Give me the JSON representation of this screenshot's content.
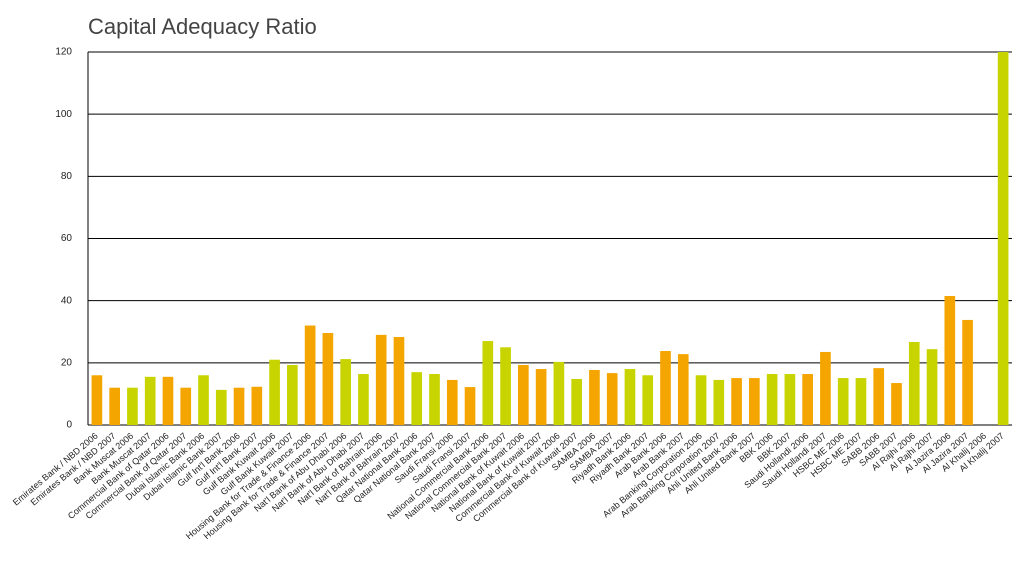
{
  "chart_data": {
    "type": "bar",
    "title": "Capital Adequacy Ratio",
    "categories": [
      "Emirates Bank / NBD 2006",
      "Emirates Bank / NBD 2007",
      "Bank Muscat 2006",
      "Bank Muscat 2007",
      "Commercial Bank of Qatar 2006",
      "Commercial Bank of Qatar 2007",
      "Dubai Islamic Bank 2006",
      "Dubai Islamic Bank 2007",
      "Gulf Int'l Bank 2006",
      "Gulf Int'l Bank 2007",
      "Gulf Bank Kuwait 2006",
      "Gulf Bank Kuwait 2007",
      "Housing Bank for Trade & Finance 2006",
      "Housing Bank for Trade & Finance 2007",
      "Nat'l Bank of Abu Dhabi 2006",
      "Nat'l Bank of Abu Dhabi 2007",
      "Nat'l Bank of Bahrain 2006",
      "Nat'l Bank of Bahrain 2007",
      "Qatar National Bank 2006",
      "Qatar National Bank 2007",
      "Saudi Fransi 2006",
      "Saudi Fransi 2007",
      "National Commercial Bank 2006",
      "National Commercial Bank 2007",
      "National Bank of Kuwait 2006",
      "National Bank of Kuwait 2007",
      "Commercial Bank of Kuwait 2006",
      "Commercial Bank of Kuwait 2007",
      "SAMBA 2006",
      "SAMBA 2007",
      "Riyadh Bank 2006",
      "Riyadh Bank 2007",
      "Arab Bank 2006",
      "Arab Bank 2007",
      "Arab Banking Corporation 2006",
      "Arab Banking Corporation 2007",
      "Ahli United Bank 2006",
      "Ahli United Bank 2007",
      "BBK 2006",
      "BBK 2007",
      "Saudi Hollandi 2006",
      "Saudi Hollandi 2007",
      "HSBC ME 2006",
      "HSBC ME 2007",
      "SABB 2006",
      "SABB 2007",
      "Al Rajhi 2006",
      "Al Rajhi 2007",
      "Al Jazira 2006",
      "Al Jazira 2007",
      "Al Khalij 2006",
      "Al Khalij 2007"
    ],
    "values": [
      16,
      12,
      12,
      15.5,
      15.5,
      12,
      16,
      11.3,
      12,
      12.3,
      21,
      19.3,
      32,
      29.6,
      21.2,
      16.4,
      29,
      28.3,
      17,
      16.4,
      14.5,
      12.2,
      27,
      25,
      19.3,
      18,
      20.3,
      14.8,
      17.7,
      16.7,
      18,
      16,
      23.8,
      22.8,
      16,
      14.5,
      15.1,
      15.1,
      16.4,
      16.4,
      16.4,
      23.5,
      15.1,
      15.1,
      18.3,
      13.5,
      26.7,
      24.4,
      41.5,
      33.8,
      null,
      120
    ],
    "colors": [
      "#f5a500",
      "#c8d400"
    ],
    "ylim": [
      0,
      120
    ],
    "yticks": [
      0,
      20,
      40,
      60,
      80,
      100,
      120
    ],
    "grid": true
  }
}
